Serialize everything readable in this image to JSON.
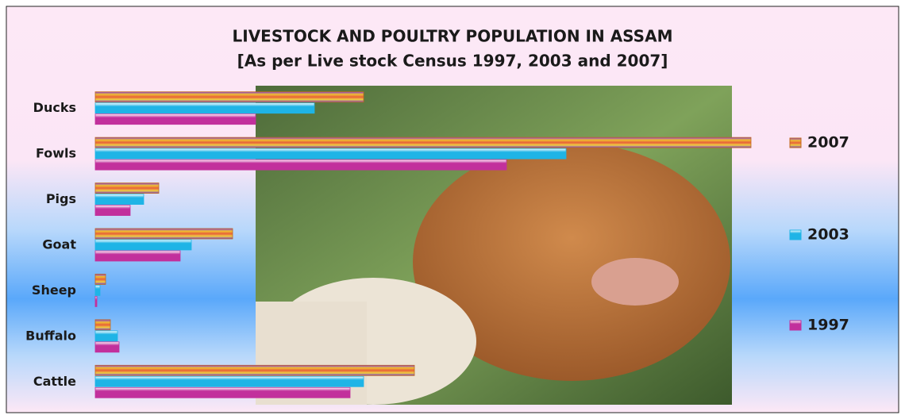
{
  "chart_data": {
    "type": "bar",
    "orientation": "horizontal",
    "title": "LIVESTOCK AND POULTRY POPULATION IN ASSAM",
    "subtitle": "[As per Live stock Census 1997, 2003 and 2007]",
    "categories": [
      "Ducks",
      "Fowls",
      "Pigs",
      "Goat",
      "Sheep",
      "Buffalo",
      "Cattle"
    ],
    "series": [
      {
        "name": "2007",
        "color": "#d98a2e",
        "values": [
          338,
          826,
          80,
          173,
          13,
          19,
          402
        ]
      },
      {
        "name": "2003",
        "color": "#1fb4e6",
        "values": [
          276,
          593,
          61,
          121,
          6,
          28,
          338
        ]
      },
      {
        "name": "1997",
        "color": "#c2309c",
        "values": [
          202,
          518,
          44,
          107,
          2,
          30,
          321
        ]
      }
    ],
    "xlim": [
      0,
      800
    ],
    "legend": "right"
  }
}
